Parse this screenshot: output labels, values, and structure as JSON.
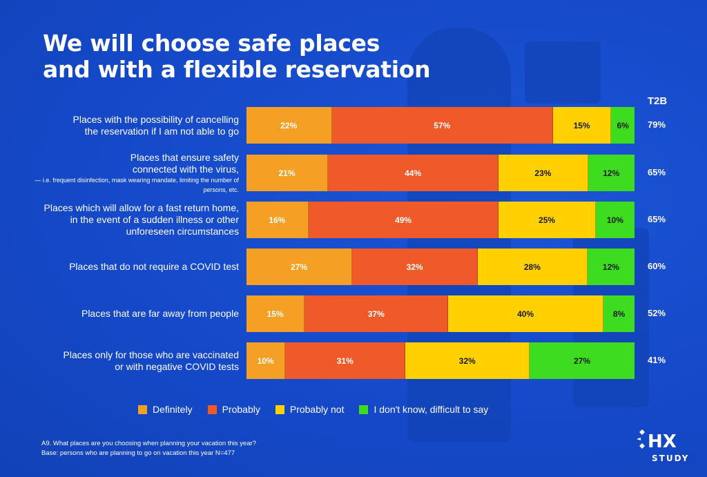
{
  "title_lines": [
    "We will choose safe places",
    "and with a flexible reservation"
  ],
  "chart_data": {
    "type": "bar",
    "orientation": "horizontal",
    "stacked": true,
    "title": "We will choose safe places and with a flexible reservation",
    "t2b_header": "T2B",
    "categories": [
      {
        "line1": "Places with the possibility of cancelling",
        "line2": "the reservation if I am not able to go",
        "sub": ""
      },
      {
        "line1": "Places that ensure safety",
        "line2": "connected with the virus,",
        "sub": "— i.e. frequent disinfection, mask wearing mandate, limiting the number of persons, etc."
      },
      {
        "line1": "Places which will allow for a fast return home,",
        "line2": "in the event of a sudden illness or other",
        "line3": "unforeseen circumstances",
        "sub": ""
      },
      {
        "line1": "Places that do not require a COVID test",
        "line2": "",
        "sub": ""
      },
      {
        "line1": "Places that are far away from people",
        "line2": "",
        "sub": ""
      },
      {
        "line1": "Places only for those who are vaccinated",
        "line2": "or with negative COVID tests",
        "sub": ""
      }
    ],
    "series": [
      {
        "name": "Definitely",
        "color": "#f5a024",
        "values": [
          22,
          21,
          16,
          27,
          15,
          10
        ]
      },
      {
        "name": "Probably",
        "color": "#f05a28",
        "values": [
          57,
          44,
          49,
          32,
          37,
          31
        ]
      },
      {
        "name": "Probably not",
        "color": "#ffd100",
        "values": [
          15,
          23,
          25,
          28,
          40,
          32
        ]
      },
      {
        "name": "I don't know, difficult to say",
        "color": "#3ddc1e",
        "values": [
          6,
          12,
          10,
          12,
          8,
          27
        ]
      }
    ],
    "t2b": [
      "79%",
      "65%",
      "65%",
      "60%",
      "52%",
      "41%"
    ],
    "legend_position": "bottom"
  },
  "footnote": {
    "line1": "A9. What places are you choosing when planning your vacation this year?",
    "line2": "Base: persons who are planning to go on vacation this year N=477"
  },
  "logo": {
    "brand": "HX",
    "sub": "STUDY"
  }
}
